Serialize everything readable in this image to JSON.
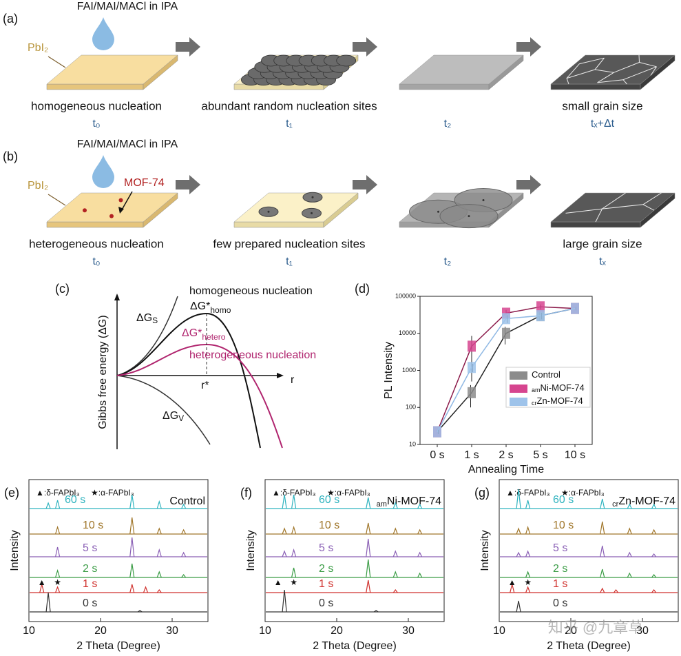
{
  "panel_a": {
    "label": "(a)",
    "solution": "FAI/MAI/MACl in IPA",
    "substrate": "PbI₂",
    "steps": [
      {
        "caption": "homogeneous nucleation",
        "time": "t₀"
      },
      {
        "caption": "abundant random nucleation sites",
        "time": "t₁"
      },
      {
        "time": "t₂"
      },
      {
        "caption": "small grain size",
        "time": "tₓ+Δt"
      }
    ]
  },
  "panel_b": {
    "label": "(b)",
    "solution": "FAI/MAI/MACl in IPA",
    "substrate": "PbI₂",
    "additive": "MOF-74",
    "steps": [
      {
        "caption": "heterogeneous nucleation",
        "time": "t₀"
      },
      {
        "caption": "few prepared nucleation sites",
        "time": "t₁"
      },
      {
        "time": "t₂"
      },
      {
        "caption": "large grain size",
        "time": "tₓ"
      }
    ]
  },
  "panel_c": {
    "label": "(c)",
    "ylabel": "Gibbs free energy (ΔG)",
    "xlabel": "r",
    "critical": "r*",
    "surface": {
      "main": "ΔG",
      "sub": "S"
    },
    "volume": {
      "main": "ΔG",
      "sub": "V"
    },
    "homo_barrier": {
      "main": "ΔG*",
      "sub": "homo"
    },
    "hetero_barrier": {
      "main": "ΔG*",
      "sub": "hetero"
    },
    "homo_curve": "homogeneous nucleation",
    "hetero_curve": "heterogeneous nucleation"
  },
  "chart_data": {
    "type": "line",
    "label": "(d)",
    "ylabel": "PL Intensity",
    "xlabel": "Annealing Time",
    "categories": [
      "0 s",
      "1 s",
      "2 s",
      "5 s",
      "10 s"
    ],
    "log_y": true,
    "ylim": [
      10,
      100000
    ],
    "yticks": [
      10,
      100,
      1000,
      10000,
      100000
    ],
    "series": [
      {
        "name": "Control",
        "color": "#8c8c8c",
        "line_color": "#222222",
        "values": [
          22,
          250,
          10000,
          30000,
          47000
        ],
        "errors": [
          3,
          150,
          5000,
          8000,
          5000
        ]
      },
      {
        "name_prefix": "am",
        "name": "Ni-MOF-74",
        "color": "#d6458f",
        "line_color": "#8b1a4a",
        "values": [
          22,
          4500,
          35000,
          52000,
          47000
        ],
        "errors": [
          3,
          4000,
          8000,
          8000,
          5000
        ]
      },
      {
        "name_prefix": "cr",
        "name": "Zn-MOF-74",
        "color": "#9ec3ea",
        "line_color": "#8fb8e4",
        "values": [
          22,
          1200,
          25000,
          30000,
          47000
        ],
        "errors": [
          3,
          300,
          6000,
          6000,
          5000
        ]
      }
    ]
  },
  "xrd_panels": [
    {
      "label": "(e)",
      "title": "Control",
      "legend": [
        "▲:δ-FAPbI₃",
        "★:α-FAPbI₃"
      ],
      "xlabel": "2 Theta (Degree)",
      "ylabel": "Intensity",
      "xlim": [
        10,
        35
      ],
      "xticks": [
        10,
        20,
        30
      ],
      "marker_symbols": [
        "▲",
        "★"
      ],
      "marker_x": [
        11.8,
        14.0
      ],
      "traces": [
        {
          "name": "60 s",
          "color": "#2fb3bf",
          "peaks_x": [
            12.7,
            14.0,
            24.4,
            28.2,
            31.6
          ],
          "peaks_h": [
            4,
            6,
            10,
            5,
            3
          ]
        },
        {
          "name": "10 s",
          "color": "#a0762a",
          "peaks_x": [
            14.0,
            24.4,
            28.2,
            31.6
          ],
          "peaks_h": [
            5,
            12,
            4,
            3
          ]
        },
        {
          "name": "5 s",
          "color": "#8a5fb5",
          "peaks_x": [
            14.0,
            24.4,
            28.2,
            31.6
          ],
          "peaks_h": [
            7,
            14,
            5,
            3
          ]
        },
        {
          "name": "2 s",
          "color": "#3a9c45",
          "peaks_x": [
            14.0,
            24.4,
            28.2,
            31.6
          ],
          "peaks_h": [
            5,
            10,
            4,
            2
          ]
        },
        {
          "name": "1 s",
          "color": "#d0312d",
          "peaks_x": [
            11.8,
            14.0,
            24.4,
            26.3,
            28.2
          ],
          "peaks_h": [
            6,
            4,
            6,
            4,
            2
          ]
        },
        {
          "name": "0 s",
          "color": "#333333",
          "peaks_x": [
            12.7,
            25.5
          ],
          "peaks_h": [
            14,
            1
          ]
        }
      ]
    },
    {
      "label": "(f)",
      "title_prefix": "am",
      "title": "Ni-MOF-74",
      "legend": [
        "▲:δ-FAPbI₃",
        "★:α-FAPbI₃"
      ],
      "xlabel": "2 Theta (Degree)",
      "ylabel": "Intensity",
      "xlim": [
        10,
        35
      ],
      "xticks": [
        10,
        20,
        30
      ],
      "marker_symbols": [
        "▲",
        "★"
      ],
      "marker_x": [
        11.8,
        14.0
      ],
      "traces": [
        {
          "name": "60 s",
          "color": "#2fb3bf",
          "peaks_x": [
            12.7,
            14.0,
            24.4,
            28.2,
            31.6
          ],
          "peaks_h": [
            10,
            10,
            8,
            4,
            3
          ]
        },
        {
          "name": "10 s",
          "color": "#a0762a",
          "peaks_x": [
            12.7,
            14.0,
            24.4,
            28.2,
            31.6
          ],
          "peaks_h": [
            4,
            5,
            8,
            4,
            3
          ]
        },
        {
          "name": "5 s",
          "color": "#8a5fb5",
          "peaks_x": [
            12.7,
            14.0,
            24.4,
            28.2,
            31.6
          ],
          "peaks_h": [
            4,
            5,
            13,
            4,
            3
          ]
        },
        {
          "name": "2 s",
          "color": "#3a9c45",
          "peaks_x": [
            14.0,
            24.4,
            28.2,
            31.6
          ],
          "peaks_h": [
            7,
            13,
            4,
            3
          ]
        },
        {
          "name": "1 s",
          "color": "#d0312d",
          "peaks_x": [
            24.4,
            28.2
          ],
          "peaks_h": [
            9,
            2
          ]
        },
        {
          "name": "0 s",
          "color": "#333333",
          "peaks_x": [
            12.7,
            25.5
          ],
          "peaks_h": [
            16,
            1
          ]
        }
      ]
    },
    {
      "label": "(g)",
      "title_prefix": "cr",
      "title": "Zn-MOF-74",
      "legend": [
        "▲:δ-FAPbI₃",
        "★:α-FAPbI₃"
      ],
      "xlabel": "2 Theta (Degree)",
      "ylabel": "Intensity",
      "xlim": [
        10,
        35
      ],
      "xticks": [
        10,
        20,
        30
      ],
      "marker_symbols": [
        "▲",
        "★"
      ],
      "marker_x": [
        11.8,
        14.0
      ],
      "traces": [
        {
          "name": "60 s",
          "color": "#2fb3bf",
          "peaks_x": [
            12.7,
            14.0,
            24.4,
            28.2,
            31.6
          ],
          "peaks_h": [
            14,
            6,
            7,
            3,
            3
          ]
        },
        {
          "name": "10 s",
          "color": "#a0762a",
          "peaks_x": [
            12.7,
            14.0,
            24.4,
            28.2,
            31.6
          ],
          "peaks_h": [
            4,
            5,
            9,
            4,
            3
          ]
        },
        {
          "name": "5 s",
          "color": "#8a5fb5",
          "peaks_x": [
            12.7,
            14.0,
            24.4,
            28.2,
            31.6
          ],
          "peaks_h": [
            3,
            4,
            8,
            3,
            2
          ]
        },
        {
          "name": "2 s",
          "color": "#3a9c45",
          "peaks_x": [
            14.0,
            24.4,
            28.2,
            31.6
          ],
          "peaks_h": [
            4,
            6,
            3,
            2
          ]
        },
        {
          "name": "1 s",
          "color": "#d0312d",
          "peaks_x": [
            11.8,
            14.0,
            24.4,
            26.3,
            31.6
          ],
          "peaks_h": [
            6,
            4,
            3,
            2,
            2
          ]
        },
        {
          "name": "0 s",
          "color": "#333333",
          "peaks_x": [
            12.7
          ],
          "peaks_h": [
            8
          ]
        }
      ]
    }
  ],
  "watermark": "知乎 @九章草"
}
